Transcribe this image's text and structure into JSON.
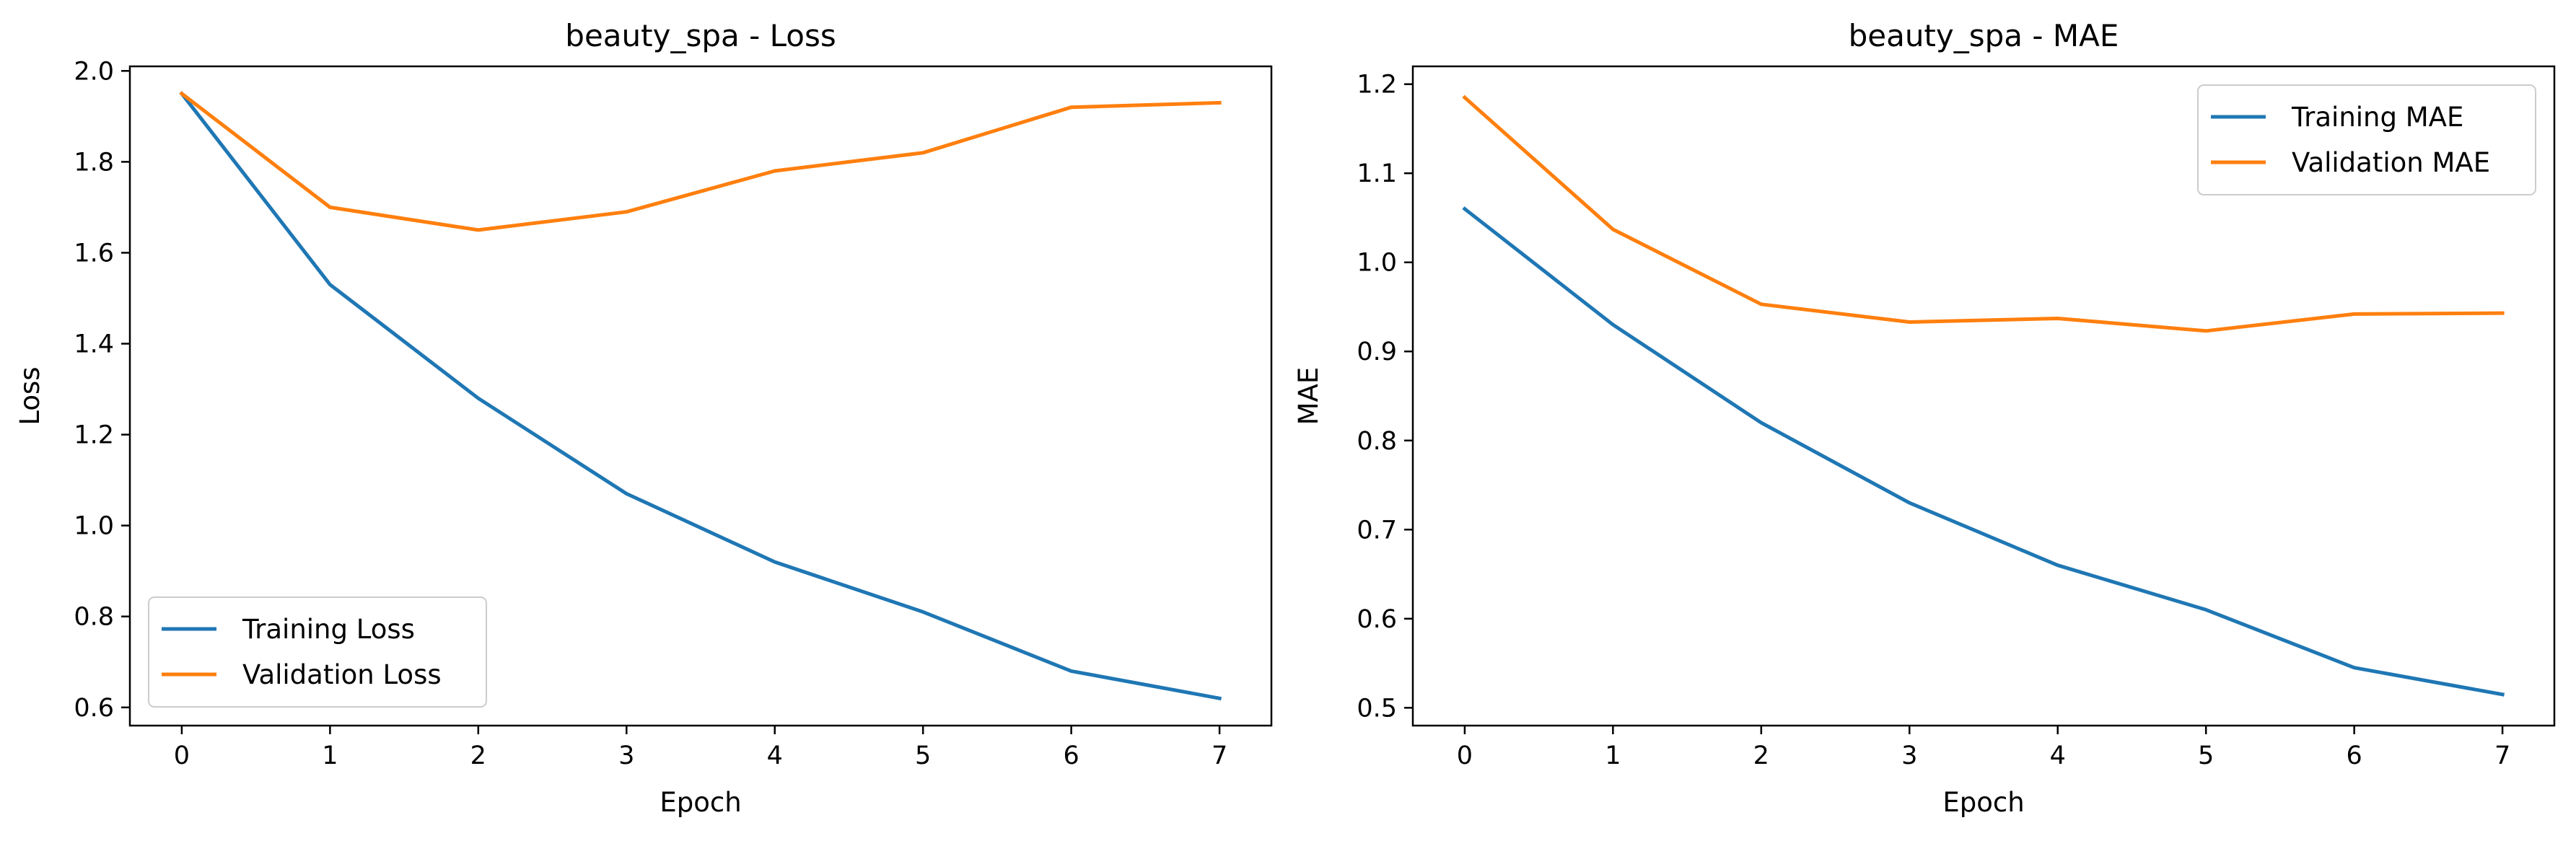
{
  "chart_data": [
    {
      "type": "line",
      "title": "beauty_spa - Loss",
      "xlabel": "Epoch",
      "ylabel": "Loss",
      "x": [
        0,
        1,
        2,
        3,
        4,
        5,
        6,
        7
      ],
      "xticks": [
        0,
        1,
        2,
        3,
        4,
        5,
        6,
        7
      ],
      "yticks": [
        0.6,
        0.8,
        1.0,
        1.2,
        1.4,
        1.6,
        1.8,
        2.0
      ],
      "ytick_labels": [
        "0.6",
        "0.8",
        "1.0",
        "1.2",
        "1.4",
        "1.6",
        "1.8",
        "2.0"
      ],
      "xlim": [
        -0.35,
        7.35
      ],
      "ylim": [
        0.56,
        2.01
      ],
      "grid": false,
      "legend_position": "lower-left",
      "series": [
        {
          "name": "Training Loss",
          "color": "#1f77b4",
          "values": [
            1.95,
            1.53,
            1.28,
            1.07,
            0.92,
            0.81,
            0.68,
            0.62
          ]
        },
        {
          "name": "Validation Loss",
          "color": "#ff7f0e",
          "values": [
            1.95,
            1.7,
            1.65,
            1.69,
            1.78,
            1.82,
            1.92,
            1.93
          ]
        }
      ]
    },
    {
      "type": "line",
      "title": "beauty_spa - MAE",
      "xlabel": "Epoch",
      "ylabel": "MAE",
      "x": [
        0,
        1,
        2,
        3,
        4,
        5,
        6,
        7
      ],
      "xticks": [
        0,
        1,
        2,
        3,
        4,
        5,
        6,
        7
      ],
      "yticks": [
        0.5,
        0.6,
        0.7,
        0.8,
        0.9,
        1.0,
        1.1,
        1.2
      ],
      "ytick_labels": [
        "0.5",
        "0.6",
        "0.7",
        "0.8",
        "0.9",
        "1.0",
        "1.1",
        "1.2"
      ],
      "xlim": [
        -0.35,
        7.35
      ],
      "ylim": [
        0.48,
        1.22
      ],
      "grid": false,
      "legend_position": "upper-right",
      "series": [
        {
          "name": "Training MAE",
          "color": "#1f77b4",
          "values": [
            1.06,
            0.93,
            0.82,
            0.73,
            0.66,
            0.61,
            0.545,
            0.515
          ]
        },
        {
          "name": "Validation MAE",
          "color": "#ff7f0e",
          "values": [
            1.185,
            1.037,
            0.953,
            0.933,
            0.937,
            0.923,
            0.942,
            0.943
          ]
        }
      ]
    }
  ]
}
